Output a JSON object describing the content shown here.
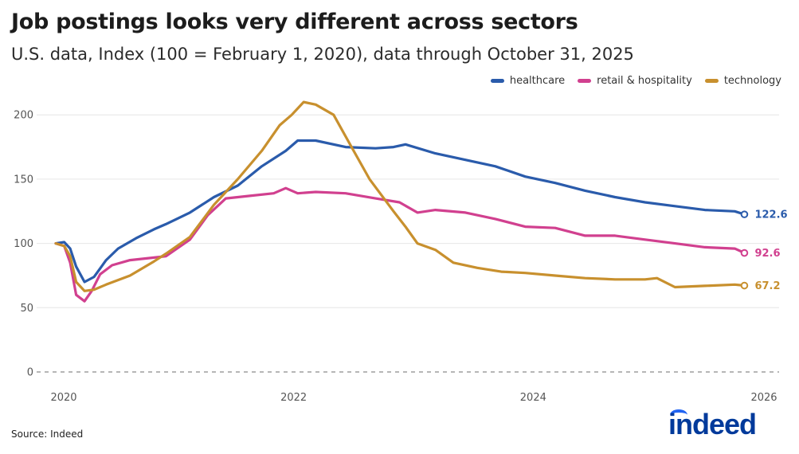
{
  "title": "Job postings looks very different across sectors",
  "subtitle": "U.S. data, Index (100 = February 1, 2020), data through October 31, 2025",
  "source": "Source: Indeed",
  "logo_text": "indeed",
  "legend": [
    {
      "label": "healthcare",
      "color": "#2a5bab"
    },
    {
      "label": "retail & hospitality",
      "color": "#d1408f"
    },
    {
      "label": "technology",
      "color": "#c8902e"
    }
  ],
  "chart_data": {
    "type": "line",
    "title": "Job postings looks very different across sectors",
    "subtitle": "U.S. data, Index (100 = February 1, 2020), data through October 31, 2025",
    "xlim": [
      2020,
      2026
    ],
    "ylim": [
      0,
      215
    ],
    "x_ticks": [
      2020,
      2022,
      2024,
      2026
    ],
    "y_ticks": [
      0,
      50,
      100,
      150,
      200
    ],
    "grid": true,
    "legend_position": "top-right",
    "reference_line": {
      "y": 0,
      "style": "dashed"
    },
    "series": [
      {
        "name": "healthcare",
        "color": "#2a5bab",
        "end_label": "122.6",
        "x": [
          2020.08,
          2020.15,
          2020.2,
          2020.25,
          2020.32,
          2020.4,
          2020.5,
          2020.6,
          2020.75,
          2020.9,
          2021.0,
          2021.2,
          2021.4,
          2021.6,
          2021.8,
          2022.0,
          2022.1,
          2022.25,
          2022.5,
          2022.75,
          2022.9,
          2023.0,
          2023.25,
          2023.5,
          2023.75,
          2024.0,
          2024.25,
          2024.5,
          2024.75,
          2025.0,
          2025.25,
          2025.5,
          2025.75,
          2025.83
        ],
        "y": [
          100,
          101,
          96,
          82,
          70,
          74,
          87,
          96,
          104,
          111,
          115,
          124,
          136,
          145,
          160,
          172,
          180,
          180,
          175,
          174,
          175,
          177,
          170,
          165,
          160,
          152,
          147,
          141,
          136,
          132,
          129,
          126,
          125,
          122.6
        ]
      },
      {
        "name": "retail & hospitality",
        "color": "#d1408f",
        "end_label": "92.6",
        "x": [
          2020.08,
          2020.15,
          2020.2,
          2020.25,
          2020.32,
          2020.38,
          2020.45,
          2020.55,
          2020.7,
          2020.9,
          2021.0,
          2021.2,
          2021.35,
          2021.5,
          2021.7,
          2021.9,
          2022.0,
          2022.1,
          2022.25,
          2022.5,
          2022.75,
          2022.95,
          2023.1,
          2023.25,
          2023.5,
          2023.75,
          2024.0,
          2024.25,
          2024.5,
          2024.75,
          2025.0,
          2025.25,
          2025.5,
          2025.75,
          2025.83
        ],
        "y": [
          100,
          98,
          85,
          60,
          55,
          63,
          76,
          83,
          87,
          89,
          90,
          103,
          122,
          135,
          137,
          139,
          143,
          139,
          140,
          139,
          135,
          132,
          124,
          126,
          124,
          119,
          113,
          112,
          106,
          106,
          103,
          100,
          97,
          96,
          92.6
        ]
      },
      {
        "name": "technology",
        "color": "#c8902e",
        "end_label": "67.2",
        "x": [
          2020.08,
          2020.15,
          2020.2,
          2020.25,
          2020.32,
          2020.4,
          2020.5,
          2020.7,
          2020.9,
          2021.0,
          2021.2,
          2021.4,
          2021.6,
          2021.8,
          2021.95,
          2022.05,
          2022.15,
          2022.25,
          2022.4,
          2022.55,
          2022.7,
          2022.9,
          2023.0,
          2023.1,
          2023.25,
          2023.4,
          2023.6,
          2023.8,
          2024.0,
          2024.25,
          2024.5,
          2024.75,
          2025.0,
          2025.1,
          2025.25,
          2025.5,
          2025.75,
          2025.83
        ],
        "y": [
          100,
          98,
          90,
          70,
          63,
          64,
          68,
          75,
          86,
          92,
          105,
          130,
          150,
          172,
          192,
          200,
          210,
          208,
          200,
          175,
          150,
          125,
          113,
          100,
          95,
          85,
          81,
          78,
          77,
          75,
          73,
          72,
          72,
          73,
          66,
          67,
          68,
          67.2
        ]
      }
    ]
  }
}
